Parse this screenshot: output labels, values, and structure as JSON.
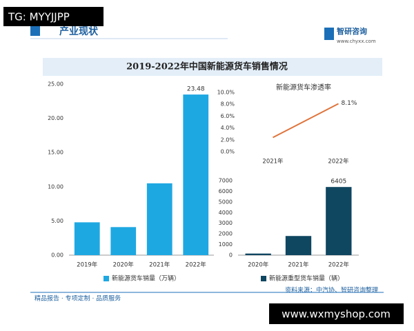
{
  "overlay": "TG: MYYJJPP",
  "header": {
    "section": "产业现状",
    "brand": "智研咨询",
    "url": "www.chyxx.com",
    "title": "2019-2022年中国新能源货车销售情况"
  },
  "chart_data": [
    {
      "type": "bar",
      "categories": [
        "2019年",
        "2020年",
        "2021年",
        "2022年"
      ],
      "series": [
        {
          "name": "新能源货车销量（万辆）",
          "color": "#1ea8e2",
          "values": [
            4.8,
            4.1,
            10.5,
            23.48
          ],
          "value_labels": [
            null,
            null,
            null,
            "23.48"
          ]
        }
      ],
      "ylim": [
        0,
        25
      ],
      "yticks": [
        {
          "value": 0,
          "label": "0.00"
        },
        {
          "value": 5,
          "label": "5.00"
        },
        {
          "value": 10,
          "label": "10.00"
        },
        {
          "value": 15,
          "label": "15.00"
        },
        {
          "value": 20,
          "label": "20.00"
        },
        {
          "value": 25,
          "label": "25.00"
        }
      ],
      "grid": false
    },
    {
      "type": "line",
      "title": "新能源货车渗透率",
      "categories": [
        "2021年",
        "2022年"
      ],
      "series": [
        {
          "name": "新能源货车渗透率",
          "color": "#e0733a",
          "values": [
            2.4,
            8.1
          ],
          "value_labels": [
            null,
            "8.1%"
          ]
        }
      ],
      "ylim": [
        0,
        10
      ],
      "yticks": [
        {
          "value": 0,
          "label": "0.0%"
        },
        {
          "value": 2,
          "label": "2.0%"
        },
        {
          "value": 4,
          "label": "4.0%"
        },
        {
          "value": 6,
          "label": "6.0%"
        },
        {
          "value": 8,
          "label": "8.0%"
        },
        {
          "value": 10,
          "label": "10.0%"
        }
      ],
      "grid": false
    },
    {
      "type": "bar",
      "categories": [
        "2020年",
        "2021年",
        "2022年"
      ],
      "series": [
        {
          "name": "新能源重型货车销量（辆）",
          "color": "#0f4660",
          "values": [
            150,
            1800,
            6405
          ],
          "value_labels": [
            null,
            null,
            "6405"
          ]
        }
      ],
      "ylim": [
        0,
        7000
      ],
      "yticks": [
        0,
        1000,
        2000,
        3000,
        4000,
        5000,
        6000,
        7000
      ],
      "grid": false
    }
  ],
  "footer": {
    "slogan": "精品报告 · 专项定制 · 品质服务",
    "source": "资料来源：中汽协、智研咨询整理"
  },
  "watermark": "www.wxmyshop.com"
}
